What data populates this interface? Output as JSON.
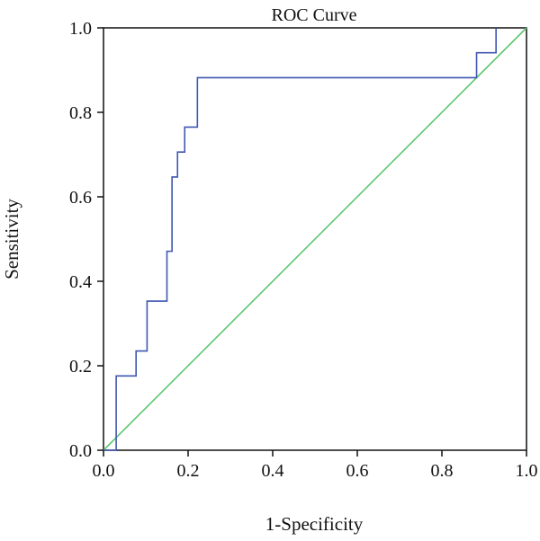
{
  "chart_data": {
    "type": "line",
    "title": "ROC Curve",
    "xlabel": "1-Specificity",
    "ylabel": "Sensitivity",
    "xlim": [
      0.0,
      1.0
    ],
    "ylim": [
      0.0,
      1.0
    ],
    "xticks": [
      "0.0",
      "0.2",
      "0.4",
      "0.6",
      "0.8",
      "1.0"
    ],
    "yticks": [
      "0.0",
      "0.2",
      "0.4",
      "0.6",
      "0.8",
      "1.0"
    ],
    "grid": false,
    "legend": "none",
    "series": [
      {
        "color": "#3f57b0",
        "step": true,
        "x": [
          0.0,
          0.03,
          0.03,
          0.077,
          0.077,
          0.103,
          0.103,
          0.15,
          0.15,
          0.162,
          0.162,
          0.175,
          0.175,
          0.192,
          0.192,
          0.222,
          0.222,
          0.882,
          0.882,
          0.928,
          0.928
        ],
        "y": [
          0.0,
          0.0,
          0.176,
          0.176,
          0.235,
          0.235,
          0.353,
          0.353,
          0.471,
          0.471,
          0.647,
          0.647,
          0.706,
          0.706,
          0.765,
          0.765,
          0.882,
          0.882,
          0.941,
          0.941,
          1.0
        ]
      },
      {
        "color": "#5cc66e",
        "x": [
          0.0,
          1.0
        ],
        "y": [
          0.0,
          1.0
        ]
      }
    ]
  }
}
